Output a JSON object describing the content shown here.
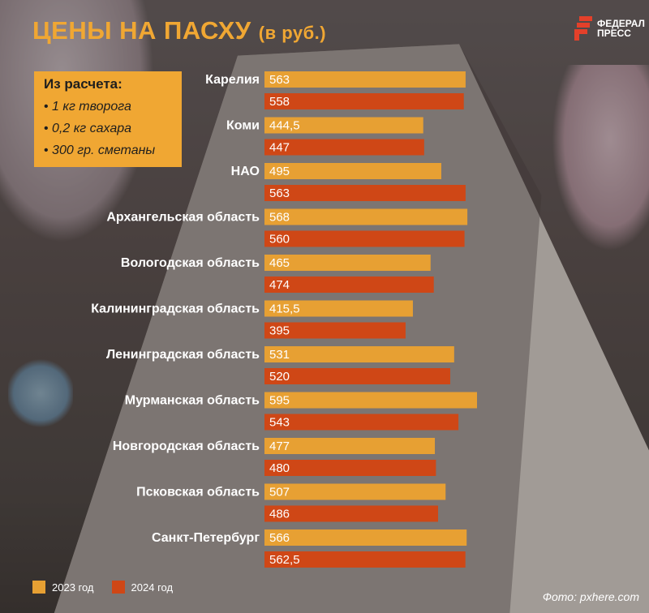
{
  "title": {
    "main": "ЦЕНЫ НА ПАСХУ",
    "sub": "(в руб.)"
  },
  "logo": {
    "line1": "ФЕДЕРАЛ",
    "line2": "ПРЕСС"
  },
  "note": {
    "heading": "Из расчета:",
    "items": [
      "1 кг творога",
      "0,2 кг сахара",
      "300 гр. сметаны"
    ]
  },
  "legend": {
    "y2023": "2023 год",
    "y2024": "2024 год"
  },
  "credit": "Фото: pxhere.com",
  "colors": {
    "accent": "#f0a733",
    "y2023": "#e7a033",
    "y2024": "#cf4716",
    "title": "#f0a733"
  },
  "chart_data": {
    "type": "bar",
    "orientation": "horizontal",
    "title": "ЦЕНЫ НА ПАСХУ (в руб.)",
    "categories": [
      "Карелия",
      "Коми",
      "НАО",
      "Архангельская область",
      "Вологодская область",
      "Калининградская область",
      "Ленинградская область",
      "Мурманская область",
      "Новгородская область",
      "Псковская область",
      "Санкт-Петербург"
    ],
    "series": [
      {
        "name": "2023 год",
        "values": [
          563,
          444.5,
          495,
          568,
          465,
          415.5,
          531,
          595,
          477,
          507,
          566
        ],
        "labels": [
          "563",
          "444,5",
          "495",
          "568",
          "465",
          "415,5",
          "531",
          "595",
          "477",
          "507",
          "566"
        ]
      },
      {
        "name": "2024 год",
        "values": [
          558,
          447,
          563,
          560,
          474,
          395,
          520,
          543,
          480,
          486,
          562.5
        ],
        "labels": [
          "558",
          "447",
          "563",
          "560",
          "474",
          "395",
          "520",
          "543",
          "480",
          "486",
          "562,5"
        ]
      }
    ],
    "xlim": [
      0,
      595
    ],
    "legend_position": "bottom-left",
    "grid": false
  }
}
